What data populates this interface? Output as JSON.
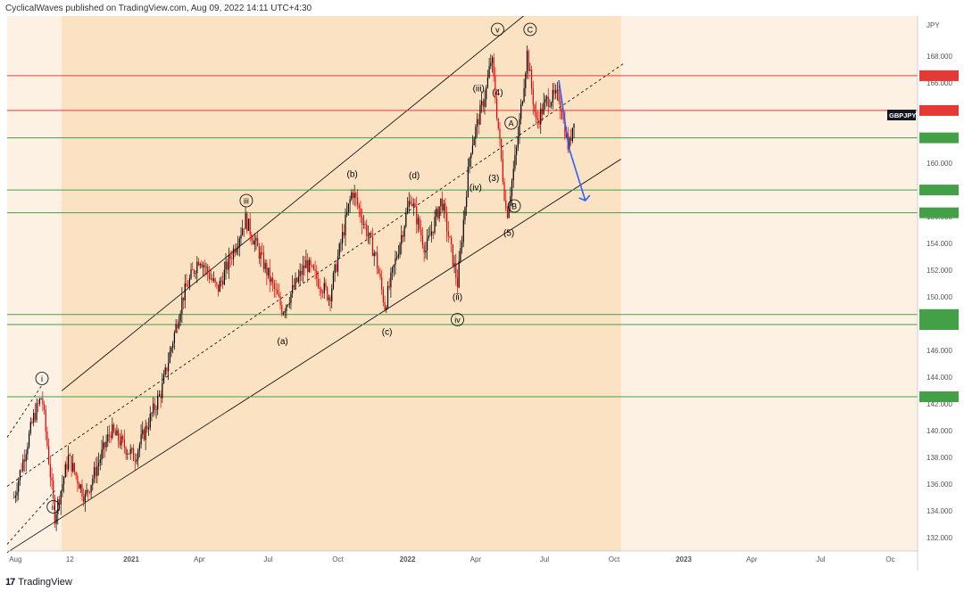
{
  "header": {
    "attribution": "CyclicalWaves published on TradingView.com, Aug 09, 2022 14:11 UTC+4:30"
  },
  "footer": {
    "logo_glyph": "17",
    "brand": "TradingView"
  },
  "colors": {
    "background": "#fdf1e4",
    "channel_fill": "#f9d5a8",
    "candle_up": "#000000",
    "candle_down": "#e60000",
    "resistance_line": "#e53935",
    "support_line": "#43a047",
    "projection_arrow": "#2962ff",
    "channel_line": "#000000"
  },
  "chart_data": {
    "type": "candlestick",
    "symbol": "GBPJPY",
    "y_axis_unit": "JPY",
    "ylim": [
      131,
      171
    ],
    "y_ticks": [
      "132.000",
      "134.000",
      "136.000",
      "138.000",
      "140.000",
      "142.000",
      "144.000",
      "146.000",
      "148.000",
      "150.000",
      "152.000",
      "154.000",
      "156.000",
      "158.000",
      "160.000",
      "162.000",
      "164.000",
      "166.000",
      "168.000"
    ],
    "x_ticks": [
      "Aug",
      "12",
      "2021",
      "Apr",
      "Jul",
      "Oct",
      "2022",
      "Apr",
      "Jul",
      "Oct",
      "2023",
      "Apr",
      "Jul",
      "Oc"
    ],
    "horizontal_levels": [
      {
        "value": 166.539,
        "label": "166.539",
        "kind": "resistance"
      },
      {
        "value": 163.939,
        "label": "163.939",
        "kind": "resistance"
      },
      {
        "value": 161.893,
        "label": "161.893",
        "kind": "support"
      },
      {
        "value": 157.992,
        "label": "157.992",
        "kind": "support"
      },
      {
        "value": 156.288,
        "label": "156.288",
        "kind": "support"
      },
      {
        "value": 148.683,
        "label": "148.683",
        "kind": "support"
      },
      {
        "value": 147.932,
        "label": "147.932",
        "kind": "support"
      },
      {
        "value": 142.533,
        "label": "142.533",
        "kind": "support"
      }
    ],
    "symbol_badge": "GBPJPY",
    "price_path": [
      {
        "d": "2020-07-30",
        "v": 135.0
      },
      {
        "d": "2020-08-25",
        "v": 141.0
      },
      {
        "d": "2020-09-05",
        "v": 142.6
      },
      {
        "d": "2020-09-22",
        "v": 133.6
      },
      {
        "d": "2020-10-10",
        "v": 138.0
      },
      {
        "d": "2020-11-01",
        "v": 135.0
      },
      {
        "d": "2020-12-05",
        "v": 140.0
      },
      {
        "d": "2021-01-05",
        "v": 138.0
      },
      {
        "d": "2021-02-10",
        "v": 143.0
      },
      {
        "d": "2021-03-10",
        "v": 150.0
      },
      {
        "d": "2021-04-01",
        "v": 153.0
      },
      {
        "d": "2021-04-25",
        "v": 150.5
      },
      {
        "d": "2021-06-01",
        "v": 155.8
      },
      {
        "d": "2021-07-20",
        "v": 149.0
      },
      {
        "d": "2021-08-20",
        "v": 152.5
      },
      {
        "d": "2021-09-20",
        "v": 150.0
      },
      {
        "d": "2021-10-20",
        "v": 158.0
      },
      {
        "d": "2021-11-20",
        "v": 153.0
      },
      {
        "d": "2021-12-02",
        "v": 149.3
      },
      {
        "d": "2022-01-05",
        "v": 157.5
      },
      {
        "d": "2022-01-25",
        "v": 153.5
      },
      {
        "d": "2022-02-15",
        "v": 157.3
      },
      {
        "d": "2022-03-08",
        "v": 151.0
      },
      {
        "d": "2022-03-25",
        "v": 161.0
      },
      {
        "d": "2022-04-15",
        "v": 165.5
      },
      {
        "d": "2022-04-22",
        "v": 168.0
      },
      {
        "d": "2022-05-12",
        "v": 156.0
      },
      {
        "d": "2022-05-25",
        "v": 161.0
      },
      {
        "d": "2022-06-08",
        "v": 168.2
      },
      {
        "d": "2022-06-20",
        "v": 163.0
      },
      {
        "d": "2022-07-05",
        "v": 164.8
      },
      {
        "d": "2022-07-20",
        "v": 165.0
      },
      {
        "d": "2022-08-02",
        "v": 161.0
      },
      {
        "d": "2022-08-09",
        "v": 163.5
      }
    ],
    "projection": {
      "from": {
        "d": "2022-07-20",
        "v": 166.2
      },
      "mid": {
        "d": "2022-08-02",
        "v": 161.2
      },
      "to": {
        "d": "2022-08-24",
        "v": 157.2
      }
    },
    "channel": {
      "upper": [
        {
          "d": "2021-09-15",
          "v": 159.0
        },
        {
          "d": "2022-06-25",
          "v": 172.0
        }
      ],
      "lower": [
        {
          "d": "2020-10-01",
          "v": 133.5
        },
        {
          "d": "2022-10-10",
          "v": 160.3
        }
      ],
      "mid": [
        {
          "d": "2020-12-01",
          "v": 141.0
        },
        {
          "d": "2022-10-15",
          "v": 167.5
        }
      ],
      "fill_start": "2020-10-01",
      "fill_end": "2022-10-10"
    },
    "wave_labels": [
      {
        "text": "i",
        "d": "2020-09-05",
        "v": 143.9,
        "circled": true
      },
      {
        "text": "iii",
        "d": "2021-06-02",
        "v": 157.2,
        "circled": true
      },
      {
        "text": "(a)",
        "d": "2021-07-20",
        "v": 146.7,
        "circled": false
      },
      {
        "text": "(b)",
        "d": "2021-10-20",
        "v": 159.2,
        "circled": false
      },
      {
        "text": "(c)",
        "d": "2021-12-05",
        "v": 147.4,
        "circled": false
      },
      {
        "text": "(d)",
        "d": "2022-01-10",
        "v": 159.1,
        "circled": false
      },
      {
        "text": "(ii)",
        "d": "2022-03-08",
        "v": 150.0,
        "circled": false
      },
      {
        "text": "(iii)",
        "d": "2022-04-05",
        "v": 165.6,
        "circled": false
      },
      {
        "text": "(iv)",
        "d": "2022-04-01",
        "v": 158.2,
        "circled": false
      },
      {
        "text": "(3)",
        "d": "2022-04-25",
        "v": 158.9,
        "circled": false
      },
      {
        "text": "(4)",
        "d": "2022-04-30",
        "v": 165.3,
        "circled": false
      },
      {
        "text": "(5)",
        "d": "2022-05-15",
        "v": 154.8,
        "circled": false
      },
      {
        "text": "A",
        "d": "2022-05-18",
        "v": 163.0,
        "circled": true
      },
      {
        "text": "B",
        "d": "2022-05-22",
        "v": 156.8,
        "circled": true
      },
      {
        "text": "C",
        "d": "2022-06-12",
        "v": 170.0,
        "circled": true
      },
      {
        "text": "v",
        "d": "2022-04-30",
        "v": 170.0,
        "circled": true
      },
      {
        "text": "iv",
        "d": "2022-03-08",
        "v": 148.3,
        "circled": true
      },
      {
        "text": "ii",
        "d": "2020-09-20",
        "v": 134.3,
        "circled": true
      }
    ]
  }
}
